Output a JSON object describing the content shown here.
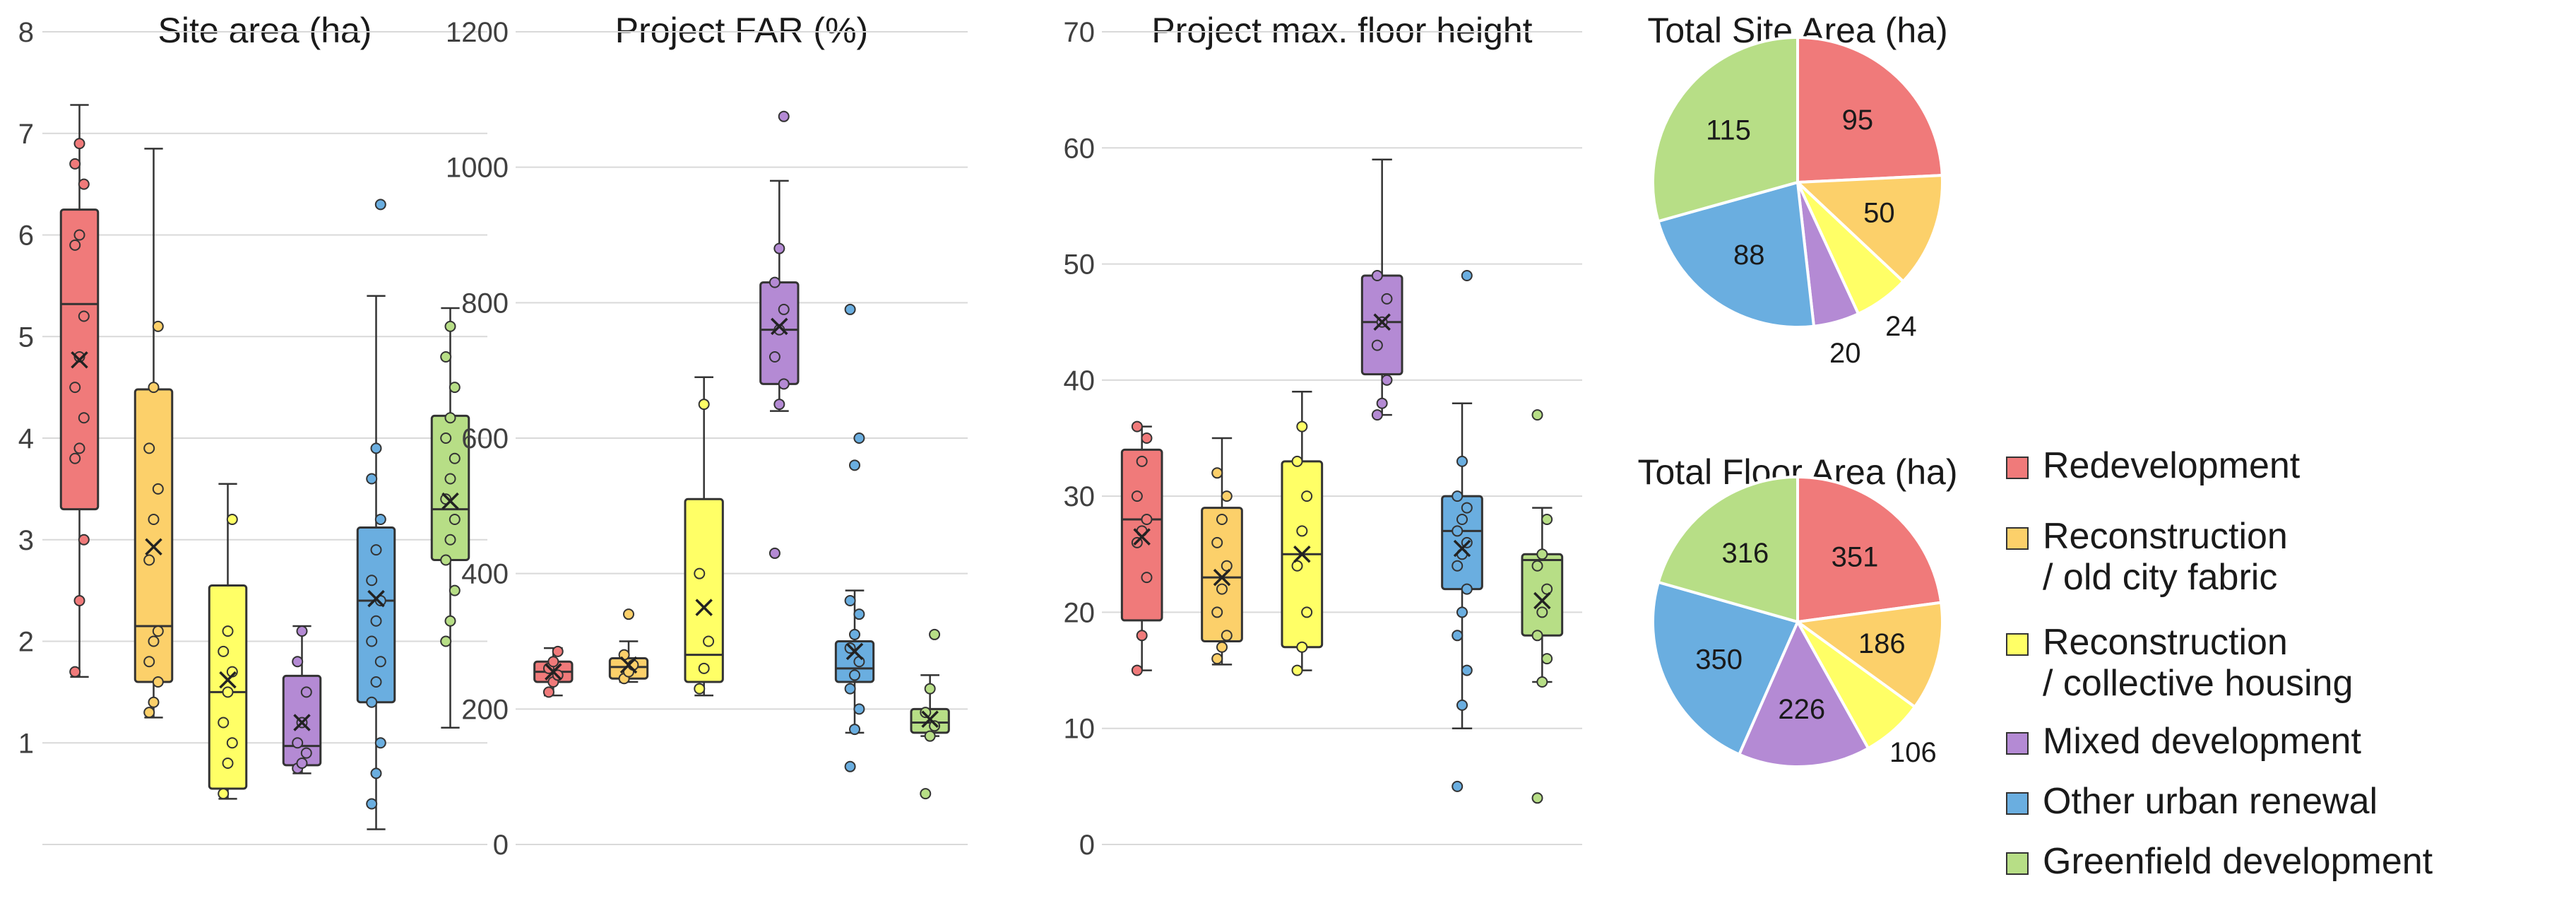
{
  "categories": [
    "Redevelopment",
    "Reconstruction / old city fabric",
    "Reconstruction / collective housing",
    "Mixed development",
    "Other urban renewal",
    "Greenfield development"
  ],
  "colors": [
    "#f07a7a",
    "#fcd06a",
    "#ffff66",
    "#b48ad4",
    "#6aaee0",
    "#b7de86"
  ],
  "legend": {
    "items": [
      {
        "label": "Redevelopment",
        "color": "#f07a7a"
      },
      {
        "label": "Reconstruction\n/ old city fabric",
        "color": "#fcd06a"
      },
      {
        "label": "Reconstruction\n/ collective housing",
        "color": "#ffff66"
      },
      {
        "label": "Mixed development",
        "color": "#b48ad4"
      },
      {
        "label": "Other urban renewal",
        "color": "#6aaee0"
      },
      {
        "label": "Greenfield development",
        "color": "#b7de86"
      }
    ]
  },
  "chart_data": [
    {
      "type": "box",
      "title": "Site area (ha)",
      "ylim": [
        0,
        8
      ],
      "yticks": [
        1,
        2,
        3,
        4,
        5,
        6,
        7,
        8
      ],
      "ytick_labels": [
        "1",
        "2",
        "3",
        "4",
        "5",
        "6",
        "7",
        "8"
      ],
      "series": [
        {
          "name": "Redevelopment",
          "min": 1.65,
          "q1": 3.3,
          "median": 5.32,
          "q3": 6.25,
          "max": 7.28,
          "mean": 4.77,
          "points": [
            1.7,
            2.4,
            3.0,
            3.8,
            3.9,
            4.2,
            4.5,
            4.8,
            5.2,
            5.9,
            6.0,
            6.5,
            6.7,
            6.9
          ]
        },
        {
          "name": "Reconstruction / old city fabric",
          "min": 1.25,
          "q1": 1.6,
          "median": 2.15,
          "q3": 4.48,
          "max": 6.85,
          "mean": 2.93,
          "points": [
            1.3,
            1.4,
            1.6,
            1.8,
            2.0,
            2.1,
            2.8,
            3.2,
            3.5,
            3.9,
            4.5,
            5.1
          ]
        },
        {
          "name": "Reconstruction / collective housing",
          "min": 0.45,
          "q1": 0.55,
          "median": 1.5,
          "q3": 2.55,
          "max": 3.55,
          "mean": 1.62,
          "points": [
            0.5,
            0.8,
            1.0,
            1.2,
            1.5,
            1.7,
            1.9,
            2.1,
            3.2
          ]
        },
        {
          "name": "Mixed development",
          "min": 0.7,
          "q1": 0.78,
          "median": 0.97,
          "q3": 1.66,
          "max": 2.15,
          "mean": 1.2,
          "points": [
            0.75,
            0.8,
            0.9,
            1.0,
            1.2,
            1.5,
            1.8,
            2.1
          ]
        },
        {
          "name": "Other urban renewal",
          "min": 0.15,
          "q1": 1.4,
          "median": 2.4,
          "q3": 3.12,
          "max": 5.4,
          "mean": 2.42,
          "points": [
            0.4,
            0.7,
            1.0,
            1.4,
            1.6,
            1.8,
            2.0,
            2.2,
            2.4,
            2.6,
            2.9,
            3.2,
            3.6,
            3.9,
            6.3
          ]
        },
        {
          "name": "Greenfield development",
          "min": 1.15,
          "q1": 2.8,
          "median": 3.3,
          "q3": 4.22,
          "max": 5.28,
          "mean": 3.38,
          "points": [
            2.0,
            2.2,
            2.5,
            2.8,
            3.0,
            3.2,
            3.4,
            3.6,
            3.8,
            4.0,
            4.2,
            4.5,
            4.8,
            5.1
          ]
        }
      ]
    },
    {
      "type": "box",
      "title": "Project FAR (%)",
      "ylim": [
        0,
        1200
      ],
      "yticks": [
        0,
        200,
        400,
        600,
        800,
        1000,
        1200
      ],
      "ytick_labels": [
        "0",
        "200",
        "400",
        "600",
        "800",
        "1000",
        "1200"
      ],
      "series": [
        {
          "name": "Redevelopment",
          "min": 220,
          "q1": 240,
          "median": 255,
          "q3": 270,
          "max": 290,
          "mean": 255,
          "points": [
            225,
            240,
            250,
            260,
            270,
            285
          ]
        },
        {
          "name": "Reconstruction / old city fabric",
          "min": 240,
          "q1": 245,
          "median": 262,
          "q3": 275,
          "max": 300,
          "mean": 265,
          "points": [
            245,
            255,
            265,
            280,
            340
          ]
        },
        {
          "name": "Reconstruction / collective housing",
          "min": 220,
          "q1": 240,
          "median": 280,
          "q3": 510,
          "max": 690,
          "mean": 350,
          "points": [
            230,
            260,
            300,
            400,
            650
          ]
        },
        {
          "name": "Mixed development",
          "min": 640,
          "q1": 680,
          "median": 760,
          "q3": 830,
          "max": 980,
          "mean": 765,
          "points": [
            430,
            650,
            680,
            720,
            760,
            790,
            830,
            880,
            1075
          ]
        },
        {
          "name": "Other urban renewal",
          "min": 165,
          "q1": 240,
          "median": 260,
          "q3": 300,
          "max": 375,
          "mean": 285,
          "points": [
            115,
            170,
            200,
            230,
            250,
            270,
            290,
            310,
            340,
            360,
            560,
            600,
            790
          ]
        },
        {
          "name": "Greenfield development",
          "min": 160,
          "q1": 165,
          "median": 180,
          "q3": 200,
          "max": 250,
          "mean": 185,
          "points": [
            75,
            160,
            175,
            195,
            230,
            310
          ]
        }
      ]
    },
    {
      "type": "box",
      "title": "Project max. floor height",
      "ylim": [
        0,
        70
      ],
      "yticks": [
        0,
        10,
        20,
        30,
        40,
        50,
        60,
        70
      ],
      "ytick_labels": [
        "0",
        "10",
        "20",
        "30",
        "40",
        "50",
        "60",
        "70"
      ],
      "series": [
        {
          "name": "Redevelopment",
          "min": 15,
          "q1": 19.3,
          "median": 28,
          "q3": 34,
          "max": 36,
          "mean": 26.5,
          "points": [
            15,
            18,
            23,
            26,
            27,
            28,
            30,
            33,
            35,
            36
          ]
        },
        {
          "name": "Reconstruction / old city fabric",
          "min": 15.5,
          "q1": 17.5,
          "median": 23,
          "q3": 29,
          "max": 35,
          "mean": 23,
          "points": [
            16,
            17,
            18,
            20,
            22,
            24,
            26,
            28,
            30,
            32
          ]
        },
        {
          "name": "Reconstruction / collective housing",
          "min": 15,
          "q1": 17,
          "median": 25,
          "q3": 33,
          "max": 39,
          "mean": 25,
          "points": [
            15,
            17,
            20,
            24,
            27,
            30,
            33,
            36
          ]
        },
        {
          "name": "Mixed development",
          "min": 37,
          "q1": 40.5,
          "median": 45,
          "q3": 49,
          "max": 59,
          "mean": 45,
          "points": [
            37,
            38,
            40,
            43,
            45,
            47,
            49
          ]
        },
        {
          "name": "Other urban renewal",
          "min": 10,
          "q1": 22,
          "median": 27,
          "q3": 30,
          "max": 38,
          "mean": 25.5,
          "points": [
            5,
            12,
            15,
            18,
            20,
            22,
            24,
            25,
            26,
            27,
            28,
            29,
            30,
            33,
            49
          ]
        },
        {
          "name": "Greenfield development",
          "min": 14,
          "q1": 18,
          "median": 24.5,
          "q3": 25,
          "max": 29,
          "mean": 21,
          "points": [
            4,
            14,
            16,
            18,
            20,
            22,
            24,
            25,
            28,
            37
          ]
        }
      ]
    },
    {
      "type": "pie",
      "title": "Total Site Area (ha)",
      "labels": [
        "Redevelopment",
        "Reconstruction / old city fabric",
        "Reconstruction / collective housing",
        "Mixed development",
        "Other urban renewal",
        "Greenfield development"
      ],
      "values": [
        95,
        50,
        24,
        20,
        88,
        115
      ],
      "value_labels": [
        "95",
        "50",
        "24",
        "20",
        "88",
        "115"
      ]
    },
    {
      "type": "pie",
      "title": "Total Floor Area (ha)",
      "labels": [
        "Redevelopment",
        "Reconstruction / old city fabric",
        "Reconstruction / collective housing",
        "Mixed development",
        "Other urban renewal",
        "Greenfield development"
      ],
      "values": [
        351,
        186,
        106,
        226,
        350,
        316
      ],
      "value_labels": [
        "351",
        "186",
        "106",
        "226",
        "350",
        "316"
      ]
    }
  ]
}
